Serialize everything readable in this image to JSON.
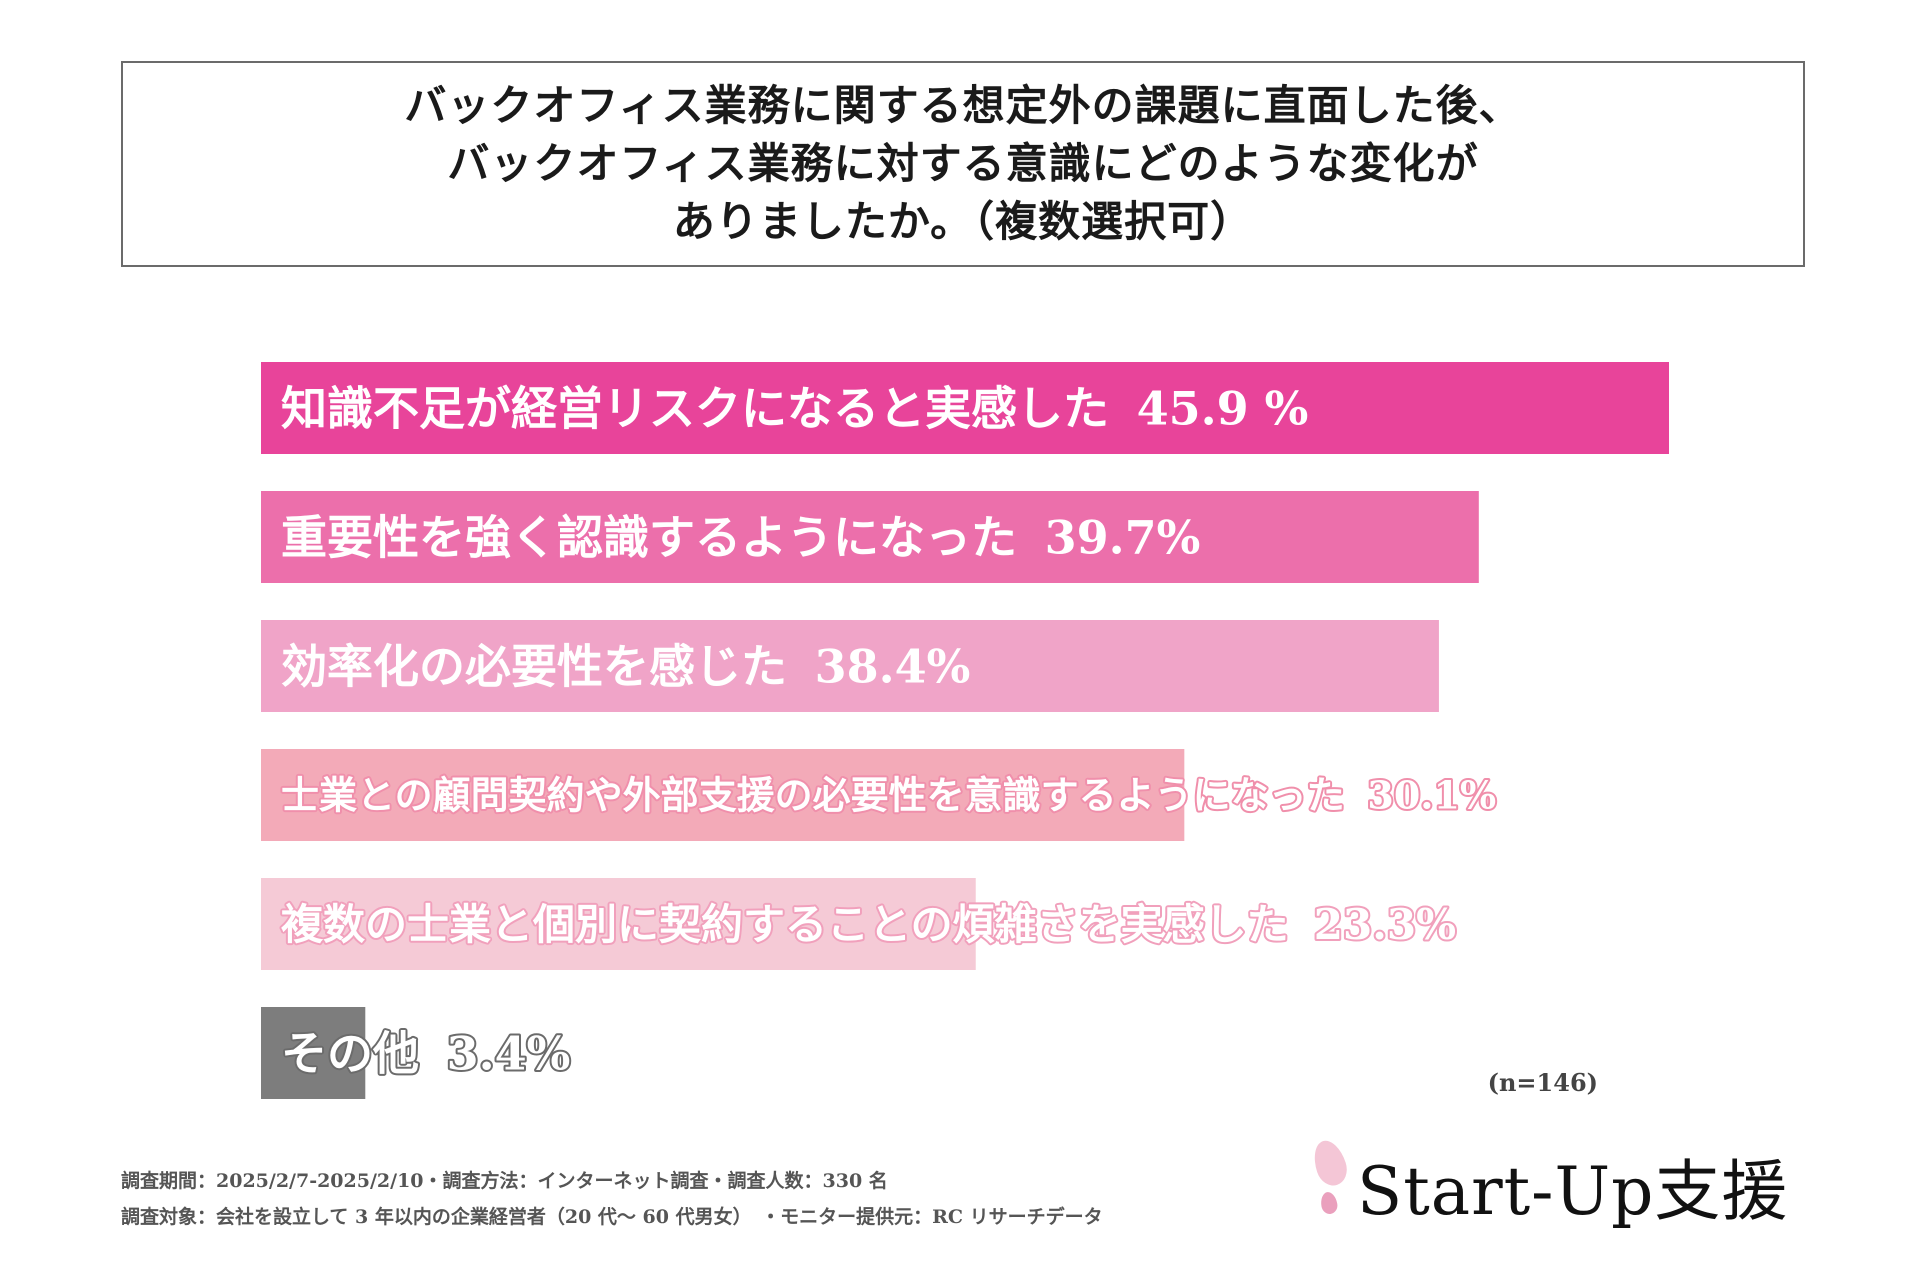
{
  "title_lines": [
    "バックオフィス業務に関する想定外の課題に直面した後、",
    "バックオフィス業務に対する意識にどのような変化が",
    "ありましたか。（複数選択可）"
  ],
  "chart_data": {
    "type": "bar",
    "orientation": "horizontal",
    "title": "バックオフィス業務に関する想定外の課題に直面した後、バックオフィス業務に対する意識にどのような変化がありましたか。（複数選択可）",
    "categories": [
      "知識不足が経営リスクになると実感した",
      "重要性を強く認識するようになった",
      "効率化の必要性を感じた",
      "士業との顧問契約や外部支援の必要性を意識するようになった",
      "複数の士業と個別に契約することの煩雑さを実感した",
      "その他"
    ],
    "values": [
      45.9,
      39.7,
      38.4,
      30.1,
      23.3,
      3.4
    ],
    "value_labels": [
      "45.9 %",
      "39.7%",
      "38.4%",
      "30.1%",
      "23.3%",
      "3.4%"
    ],
    "colors": [
      "#e8449a",
      "#ec6fab",
      "#f0a4c8",
      "#f3aab8",
      "#f5cad6",
      "#7d7d7d"
    ],
    "unit": "%",
    "xlim": [
      0,
      45.9
    ],
    "grid": false,
    "legend": "none"
  },
  "sample_size": "(n=146)",
  "footnotes": [
    "調査期間：2025/2/7-2025/2/10・調査方法：インターネット調査・調査人数：330 名",
    "調査対象：会社を設立して 3 年以内の企業経営者（20 代～ 60 代男女）　・モニター提供元：RC リサーチデータ"
  ],
  "logo": {
    "text": "Start-Up支援",
    "accent_colors": [
      "#f4c6d6",
      "#eaa0bd"
    ]
  }
}
